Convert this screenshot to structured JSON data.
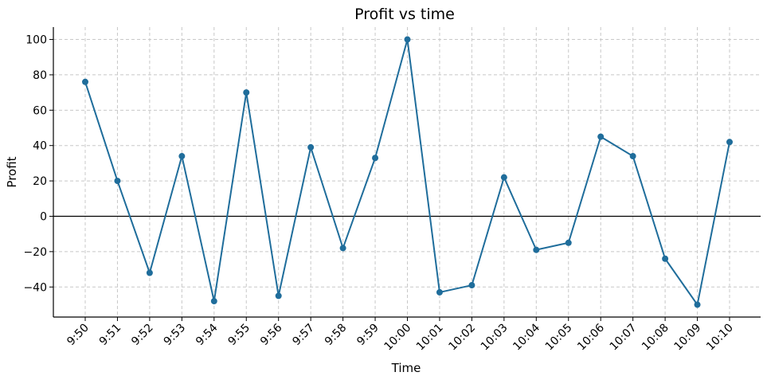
{
  "chart_data": {
    "type": "line",
    "title": "Profit vs time",
    "xlabel": "Time",
    "ylabel": "Profit",
    "categories": [
      "9:50",
      "9:51",
      "9:52",
      "9:53",
      "9:54",
      "9:55",
      "9:56",
      "9:57",
      "9:58",
      "9:59",
      "10:00",
      "10:01",
      "10:02",
      "10:03",
      "10:04",
      "10:05",
      "10:06",
      "10:07",
      "10:08",
      "10:09",
      "10:10"
    ],
    "series": [
      {
        "values": [
          76,
          20,
          -32,
          34,
          -48,
          70,
          -45,
          39,
          -18,
          33,
          100,
          -43,
          -39,
          22,
          -19,
          -15,
          45,
          34,
          -24,
          -50,
          42
        ]
      }
    ],
    "ylim": [
      -57,
      107
    ],
    "yticks": [
      -40,
      -20,
      0,
      20,
      40,
      60,
      80,
      100
    ],
    "grid": true,
    "zero_line": true,
    "colors": {
      "series": "#1f6d9b",
      "axis": "#000000",
      "grid": "#c8c8c8"
    }
  }
}
